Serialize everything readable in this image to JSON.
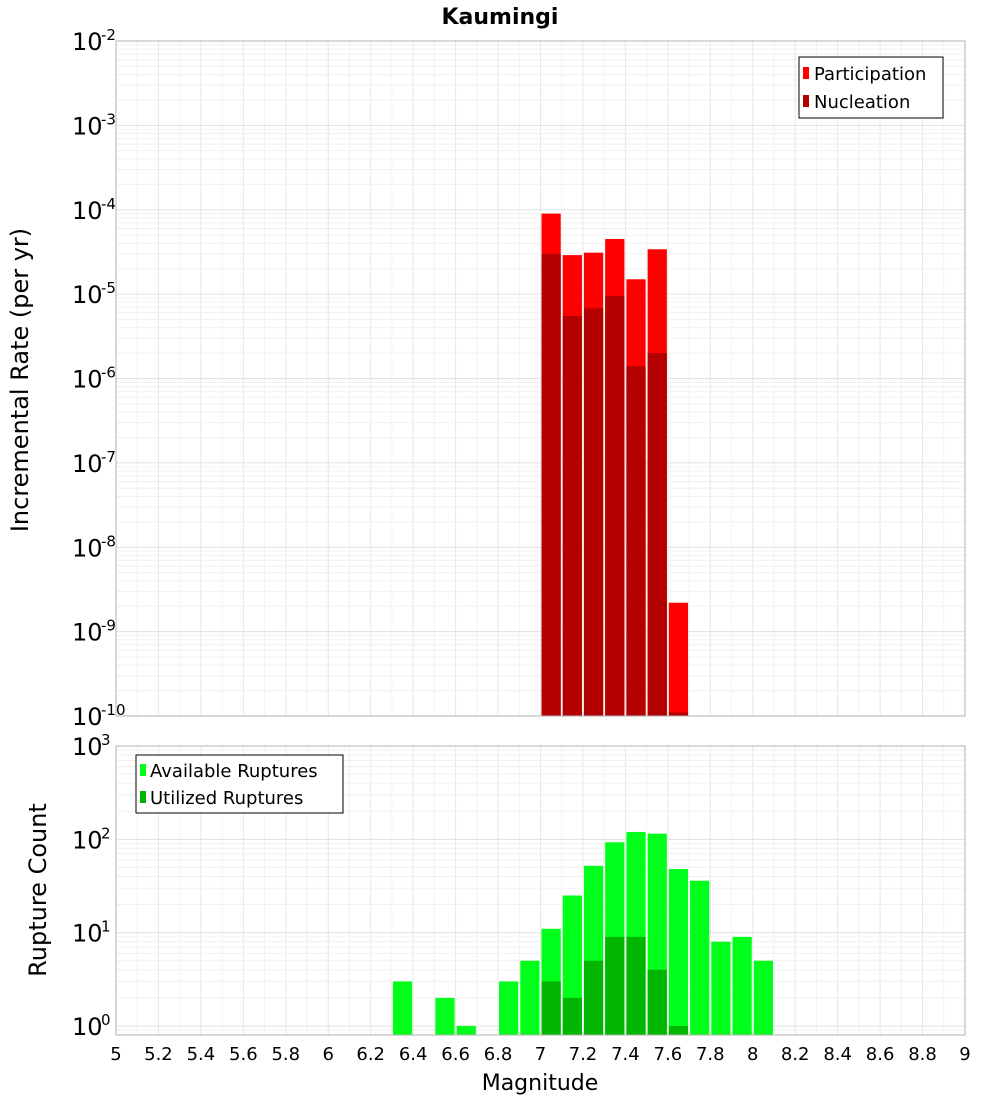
{
  "chart_data": [
    {
      "type": "bar",
      "title": "Kaumingi",
      "ylabel": "Incremental Rate (per yr)",
      "xlabel": "",
      "yscale": "log",
      "ylim": [
        1e-10,
        0.01
      ],
      "xlim": [
        5,
        9
      ],
      "y_tick_base": "10",
      "y_tick_exponents": [
        "-10",
        "-9",
        "-8",
        "-7",
        "-6",
        "-5",
        "-4",
        "-3",
        "-2"
      ],
      "bin_width": 0.1,
      "legend_position": "top-right",
      "series": [
        {
          "name": "Participation",
          "color": "#ff0000",
          "x": [
            7.05,
            7.15,
            7.25,
            7.35,
            7.45,
            7.55,
            7.65
          ],
          "values": [
            9e-05,
            2.9e-05,
            3.1e-05,
            4.5e-05,
            1.5e-05,
            3.4e-05,
            2.2e-09
          ]
        },
        {
          "name": "Nucleation",
          "color": "#b30000",
          "x": [
            7.05,
            7.15,
            7.25,
            7.35,
            7.45,
            7.55,
            7.65
          ],
          "values": [
            3e-05,
            5.5e-06,
            6.8e-06,
            9.5e-06,
            1.4e-06,
            2e-06,
            1.1e-10
          ]
        }
      ]
    },
    {
      "type": "bar",
      "title": "",
      "ylabel": "Rupture Count",
      "xlabel": "Magnitude",
      "yscale": "log",
      "ylim": [
        0.8,
        1000
      ],
      "xlim": [
        5,
        9
      ],
      "y_tick_base": "10",
      "y_tick_exponents": [
        "0",
        "1",
        "2",
        "3"
      ],
      "x_tick_labels": [
        "5",
        "5.2",
        "5.4",
        "5.6",
        "5.8",
        "6",
        "6.2",
        "6.4",
        "6.6",
        "6.8",
        "7",
        "7.2",
        "7.4",
        "7.6",
        "7.8",
        "8",
        "8.2",
        "8.4",
        "8.6",
        "8.8",
        "9"
      ],
      "bin_width": 0.1,
      "legend_position": "top-left",
      "series": [
        {
          "name": "Available Ruptures",
          "color": "#00ff1a",
          "x": [
            6.35,
            6.55,
            6.65,
            6.85,
            6.95,
            7.05,
            7.15,
            7.25,
            7.35,
            7.45,
            7.55,
            7.65,
            7.75,
            7.85,
            7.95,
            8.05
          ],
          "values": [
            3,
            2,
            1,
            3,
            5,
            11,
            25,
            52,
            93,
            120,
            115,
            48,
            36,
            8,
            9,
            5
          ]
        },
        {
          "name": "Utilized Ruptures",
          "color": "#00b600",
          "x": [
            7.05,
            7.15,
            7.25,
            7.35,
            7.45,
            7.55,
            7.65
          ],
          "values": [
            3,
            2,
            5,
            9,
            9,
            4,
            1
          ]
        }
      ]
    }
  ]
}
